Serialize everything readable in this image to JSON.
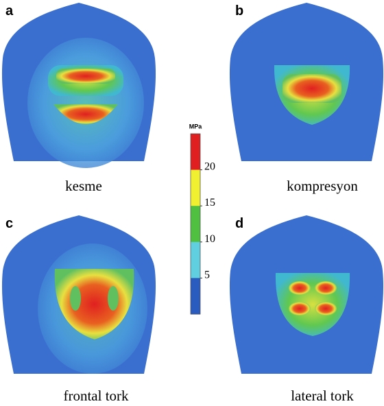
{
  "panels": [
    {
      "letter": "a",
      "caption": "kesme"
    },
    {
      "letter": "b",
      "caption": "kompresyon"
    },
    {
      "letter": "c",
      "caption": "frontal tork"
    },
    {
      "letter": "d",
      "caption": "lateral tork"
    }
  ],
  "colorbar": {
    "unit": "MPa",
    "ticks": [
      20,
      15,
      10,
      5
    ],
    "colors": [
      "#e02020",
      "#f0f030",
      "#50c040",
      "#60d0e0",
      "#2a5cc0"
    ]
  }
}
